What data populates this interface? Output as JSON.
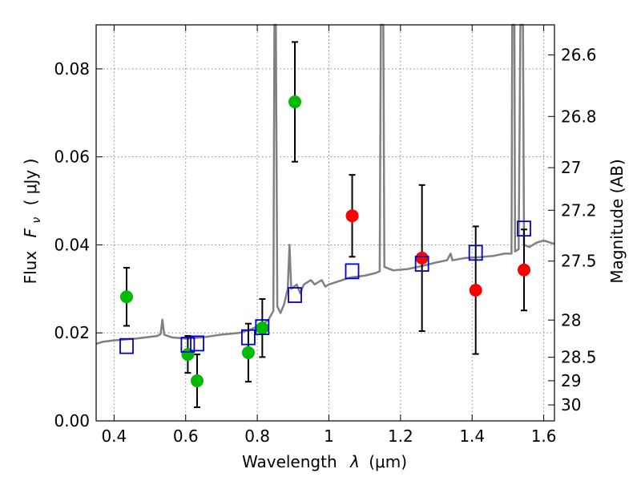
{
  "chart_data": {
    "type": "scatter",
    "title": "",
    "xlabel_text": "Wavelength",
    "xlabel_symbol": "λ",
    "xlabel_unit": "(μm)",
    "ylabel_text": "Flux",
    "ylabel_symbol": "F",
    "ylabel_subscript": "ν",
    "ylabel_unit": "( μJy )",
    "y2label": "Magnitude (AB)",
    "xlim": [
      0.35,
      1.63
    ],
    "ylim": [
      0.0,
      0.09
    ],
    "grid": true,
    "x_ticks": [
      0.4,
      0.6,
      0.8,
      1.0,
      1.2,
      1.4,
      1.6
    ],
    "x_tick_labels": [
      "0.4",
      "0.6",
      "0.8",
      "1",
      "1.2",
      "1.4",
      "1.6"
    ],
    "y_ticks": [
      0.0,
      0.02,
      0.04,
      0.06,
      0.08
    ],
    "y_tick_labels": [
      "0.00",
      "0.02",
      "0.04",
      "0.06",
      "0.08"
    ],
    "y2_ticks": [
      {
        "label": "26.6",
        "mag": 26.6
      },
      {
        "label": "26.8",
        "mag": 26.8
      },
      {
        "label": "27",
        "mag": 27.0
      },
      {
        "label": "27.2",
        "mag": 27.2
      },
      {
        "label": "27.5",
        "mag": 27.5
      },
      {
        "label": "28",
        "mag": 28.0
      },
      {
        "label": "28.5",
        "mag": 28.5
      },
      {
        "label": "29",
        "mag": 29.0
      },
      {
        "label": "30",
        "mag": 30.0
      }
    ],
    "colors": {
      "green": "#00bb00",
      "red": "#ff0000",
      "model_box": "#0000cc",
      "template": "#808080",
      "grid": "#888888"
    },
    "series": [
      {
        "type": "scatter",
        "marker": "circle",
        "color": "#00bb00",
        "points": [
          {
            "x": 0.435,
            "y": 0.0282,
            "err": 0.0066
          },
          {
            "x": 0.606,
            "y": 0.0151,
            "err": 0.0042
          },
          {
            "x": 0.632,
            "y": 0.0091,
            "err": 0.006
          },
          {
            "x": 0.775,
            "y": 0.0155,
            "err": 0.0066
          },
          {
            "x": 0.814,
            "y": 0.0211,
            "err": 0.0066
          },
          {
            "x": 0.905,
            "y": 0.0725,
            "err": 0.0136
          }
        ]
      },
      {
        "type": "scatter",
        "marker": "circle",
        "color": "#ff0000",
        "points": [
          {
            "x": 1.065,
            "y": 0.0466,
            "err": 0.0093
          },
          {
            "x": 1.26,
            "y": 0.037,
            "err": 0.0166
          },
          {
            "x": 1.41,
            "y": 0.0297,
            "err": 0.0145
          },
          {
            "x": 1.545,
            "y": 0.0343,
            "err": 0.0092
          }
        ]
      },
      {
        "type": "scatter",
        "marker": "open-square",
        "color": "#0000cc",
        "points": [
          {
            "x": 0.435,
            "y": 0.017
          },
          {
            "x": 0.606,
            "y": 0.0173
          },
          {
            "x": 0.632,
            "y": 0.0176
          },
          {
            "x": 0.775,
            "y": 0.019
          },
          {
            "x": 0.814,
            "y": 0.0213
          },
          {
            "x": 0.905,
            "y": 0.0286
          },
          {
            "x": 1.065,
            "y": 0.034
          },
          {
            "x": 1.26,
            "y": 0.0357
          },
          {
            "x": 1.41,
            "y": 0.0382
          },
          {
            "x": 1.545,
            "y": 0.0437
          }
        ]
      },
      {
        "type": "line",
        "color": "#808080",
        "points": [
          [
            0.35,
            0.0175
          ],
          [
            0.37,
            0.018
          ],
          [
            0.4,
            0.0183
          ],
          [
            0.43,
            0.0185
          ],
          [
            0.46,
            0.0187
          ],
          [
            0.5,
            0.0191
          ],
          [
            0.52,
            0.0193
          ],
          [
            0.53,
            0.0197
          ],
          [
            0.535,
            0.023
          ],
          [
            0.54,
            0.0196
          ],
          [
            0.56,
            0.019
          ],
          [
            0.6,
            0.0187
          ],
          [
            0.65,
            0.019
          ],
          [
            0.7,
            0.0196
          ],
          [
            0.75,
            0.02
          ],
          [
            0.78,
            0.0207
          ],
          [
            0.8,
            0.0215
          ],
          [
            0.83,
            0.0228
          ],
          [
            0.845,
            0.025
          ],
          [
            0.848,
            0.092
          ],
          [
            0.852,
            0.092
          ],
          [
            0.856,
            0.026
          ],
          [
            0.865,
            0.0245
          ],
          [
            0.875,
            0.0265
          ],
          [
            0.885,
            0.03
          ],
          [
            0.89,
            0.04
          ],
          [
            0.895,
            0.03
          ],
          [
            0.91,
            0.031
          ],
          [
            0.92,
            0.029
          ],
          [
            0.93,
            0.031
          ],
          [
            0.95,
            0.032
          ],
          [
            0.96,
            0.031
          ],
          [
            0.98,
            0.032
          ],
          [
            0.99,
            0.0305
          ],
          [
            1.0,
            0.031
          ],
          [
            1.03,
            0.0318
          ],
          [
            1.06,
            0.0326
          ],
          [
            1.1,
            0.033
          ],
          [
            1.13,
            0.0336
          ],
          [
            1.142,
            0.034
          ],
          [
            1.145,
            0.092
          ],
          [
            1.152,
            0.092
          ],
          [
            1.155,
            0.035
          ],
          [
            1.18,
            0.0342
          ],
          [
            1.22,
            0.0345
          ],
          [
            1.26,
            0.0352
          ],
          [
            1.3,
            0.036
          ],
          [
            1.33,
            0.0365
          ],
          [
            1.34,
            0.038
          ],
          [
            1.345,
            0.0365
          ],
          [
            1.38,
            0.037
          ],
          [
            1.42,
            0.0372
          ],
          [
            1.46,
            0.0375
          ],
          [
            1.49,
            0.038
          ],
          [
            1.51,
            0.038
          ],
          [
            1.512,
            0.092
          ],
          [
            1.518,
            0.092
          ],
          [
            1.52,
            0.0385
          ],
          [
            1.53,
            0.039
          ],
          [
            1.535,
            0.092
          ],
          [
            1.542,
            0.092
          ],
          [
            1.545,
            0.04
          ],
          [
            1.56,
            0.0395
          ],
          [
            1.58,
            0.0405
          ],
          [
            1.6,
            0.041
          ],
          [
            1.63,
            0.0402
          ]
        ]
      }
    ]
  }
}
